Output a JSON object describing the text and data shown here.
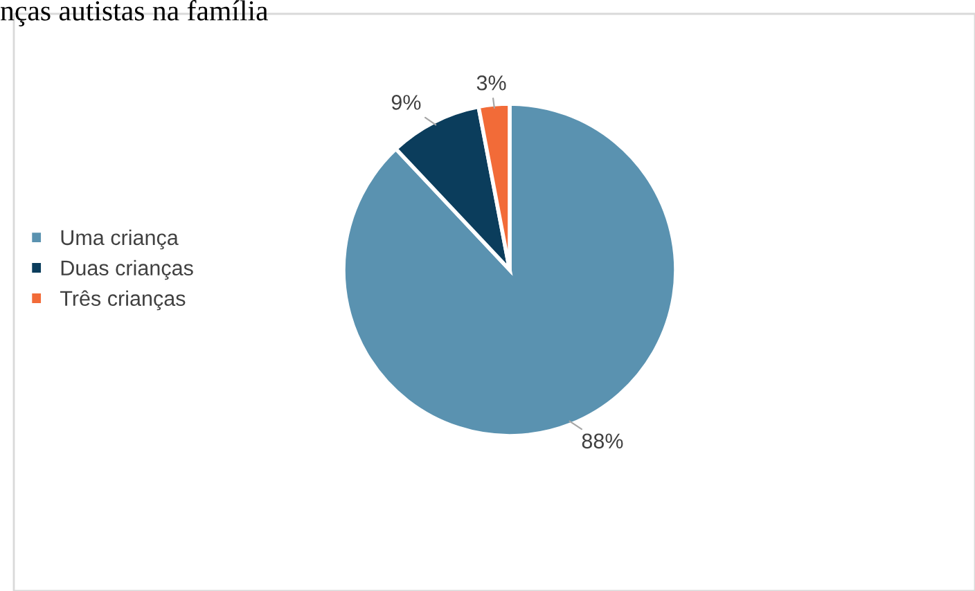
{
  "chart_data": {
    "type": "pie",
    "title": "nças autistas na família",
    "categories": [
      "Uma criança",
      "Duas crianças",
      "Três crianças"
    ],
    "values": [
      88,
      9,
      3
    ],
    "colors": [
      "#5a92b0",
      "#0b3d5c",
      "#f26b38"
    ],
    "value_labels": [
      "88%",
      "9%",
      "3%"
    ],
    "legend": "left"
  }
}
